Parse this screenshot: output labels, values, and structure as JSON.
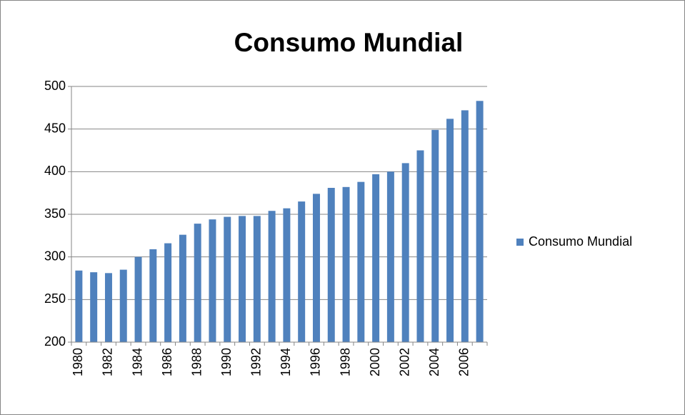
{
  "chart_data": {
    "type": "bar",
    "title": "Consumo Mundial",
    "categories": [
      "1980",
      null,
      "1982",
      null,
      "1984",
      null,
      "1986",
      null,
      "1988",
      null,
      "1990",
      null,
      "1992",
      null,
      "1994",
      null,
      "1996",
      null,
      "1998",
      null,
      "2000",
      null,
      "2002",
      null,
      "2004",
      null,
      "2006",
      null
    ],
    "series": [
      {
        "name": "Consumo Mundial",
        "color": "#4f81bd",
        "values": [
          284,
          282,
          281,
          285,
          300,
          309,
          316,
          326,
          339,
          344,
          347,
          348,
          348,
          354,
          357,
          365,
          374,
          381,
          382,
          388,
          397,
          400,
          410,
          425,
          449,
          462,
          472,
          483
        ]
      }
    ],
    "ylim": [
      200,
      500
    ],
    "yticks": [
      200,
      250,
      300,
      350,
      400,
      450,
      500
    ],
    "grid": true,
    "legend": "right"
  }
}
